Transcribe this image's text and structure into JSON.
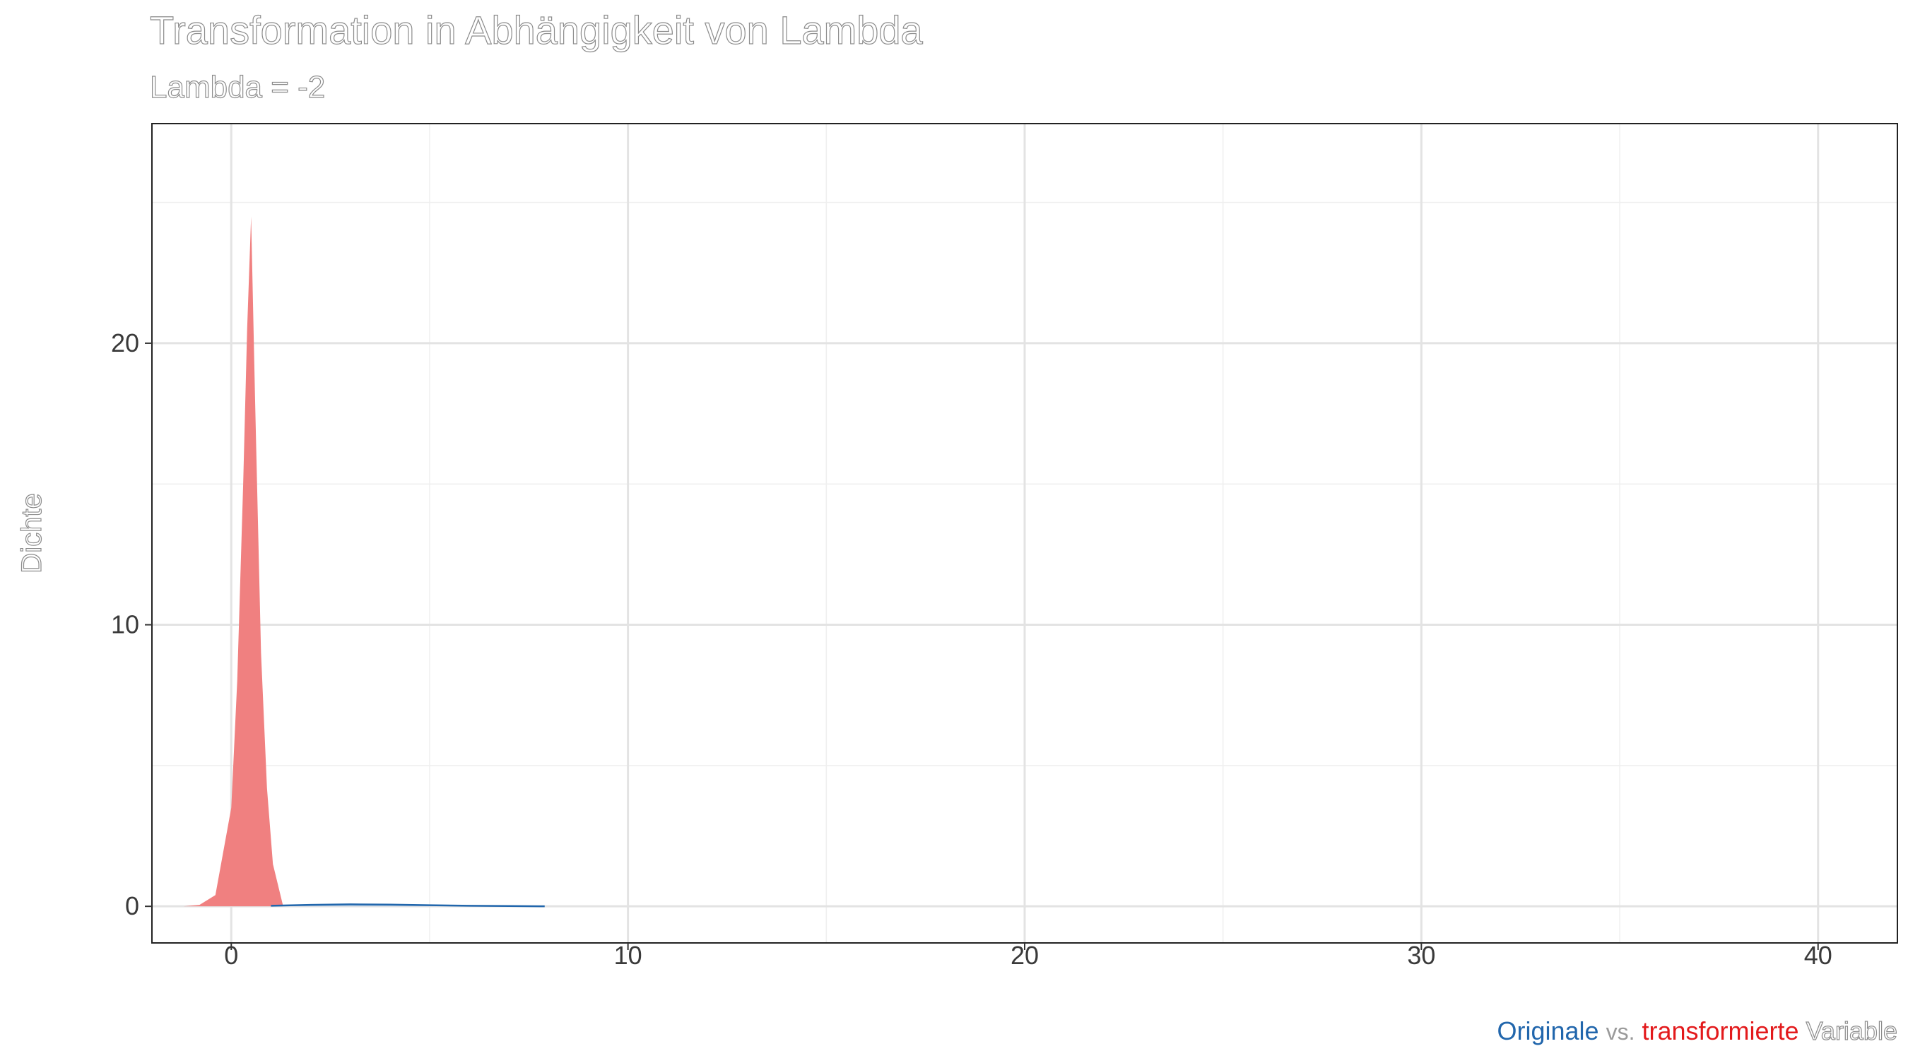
{
  "chart_data": {
    "type": "area",
    "title": "Transformation in Abhängigkeit von Lambda",
    "subtitle": "Lambda = -2",
    "ylabel": "Dichte",
    "xlabel": "",
    "xlim": [
      -2,
      42
    ],
    "ylim": [
      -1.3,
      27.8
    ],
    "x_ticks": [
      0,
      10,
      20,
      30,
      40
    ],
    "y_ticks": [
      0,
      10,
      20
    ],
    "grid": true,
    "caption": {
      "original": "Originale",
      "vs": "vs.",
      "transformed": "transformierte",
      "variable": "Variable"
    },
    "colors": {
      "original": "#2166ac",
      "transformed": "#e31a1c",
      "transformed_fill": "#f08080",
      "caption_vs": "#9a9a9a",
      "caption_variable": "#8c8c8c"
    },
    "series": [
      {
        "key": "transformed",
        "x": [
          -1.2,
          -0.8,
          -0.4,
          0.0,
          0.15,
          0.3,
          0.4,
          0.5,
          0.6,
          0.75,
          0.9,
          1.05,
          1.3
        ],
        "y": [
          0.0,
          0.05,
          0.4,
          3.5,
          8.0,
          15.0,
          20.5,
          24.5,
          18.0,
          9.0,
          4.2,
          1.5,
          0.05
        ]
      },
      {
        "key": "original",
        "x": [
          1.0,
          2.0,
          3.0,
          4.0,
          5.0,
          6.0,
          7.0,
          7.9
        ],
        "y": [
          0.02,
          0.05,
          0.07,
          0.06,
          0.04,
          0.02,
          0.01,
          0.0
        ]
      }
    ]
  }
}
